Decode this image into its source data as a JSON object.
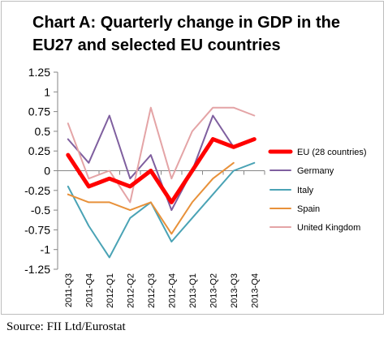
{
  "title": "Chart A: Quarterly change in GDP in the EU27 and selected EU countries",
  "source": "Source: FII Ltd/Eurostat",
  "chart_data": {
    "type": "line",
    "title": "Chart A: Quarterly change in GDP in the EU27 and selected EU countries",
    "xlabel": "",
    "ylabel": "",
    "categories": [
      "2011-Q3",
      "2011-Q4",
      "2012-Q1",
      "2012-Q2",
      "2012-Q3",
      "2012-Q4",
      "2013-Q1",
      "2013-Q2",
      "2013-Q3",
      "2013-Q4"
    ],
    "ylim": [
      -1.25,
      1.25
    ],
    "yticks": [
      "1.25",
      "1",
      "0.75",
      "0.5",
      "0.25",
      "0",
      "-0.25",
      "-0.5",
      "-0.75",
      "-1",
      "-1.25"
    ],
    "grid": false,
    "legend": "right",
    "series": [
      {
        "name": "EU (28 countries)",
        "color": "#ff0000",
        "values": [
          0.2,
          -0.2,
          -0.1,
          -0.2,
          0.0,
          -0.4,
          0.0,
          0.4,
          0.3,
          0.4
        ]
      },
      {
        "name": "Germany",
        "color": "#7f5f9f",
        "values": [
          0.4,
          0.1,
          0.7,
          -0.1,
          0.2,
          -0.5,
          0.0,
          0.7,
          0.3,
          0.4
        ]
      },
      {
        "name": "Italy",
        "color": "#4aa3b5",
        "values": [
          -0.2,
          -0.7,
          -1.1,
          -0.6,
          -0.4,
          -0.9,
          -0.6,
          -0.3,
          0.0,
          0.1
        ]
      },
      {
        "name": "Spain",
        "color": "#e8913a",
        "values": [
          -0.3,
          -0.4,
          -0.4,
          -0.5,
          -0.4,
          -0.8,
          -0.4,
          -0.1,
          0.1,
          null
        ]
      },
      {
        "name": "United Kingdom",
        "color": "#e4a4a6",
        "values": [
          0.6,
          -0.1,
          0.0,
          -0.4,
          0.8,
          -0.1,
          0.5,
          0.8,
          0.8,
          0.7
        ]
      }
    ]
  }
}
